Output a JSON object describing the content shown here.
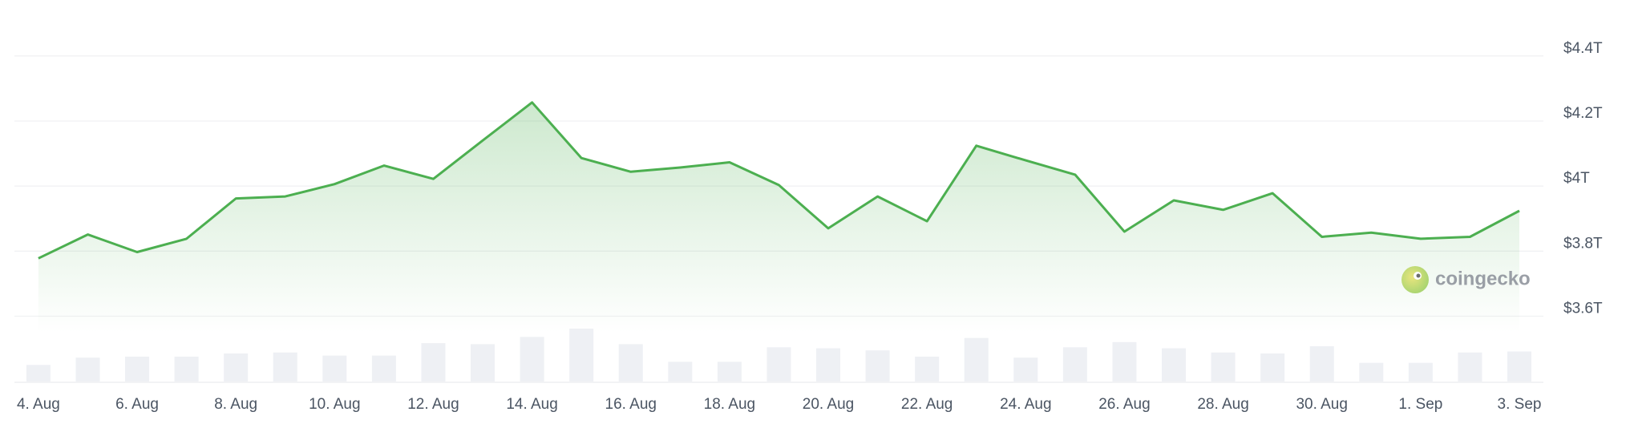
{
  "chart_data": {
    "type": "line",
    "categories": [
      "4. Aug",
      null,
      "6. Aug",
      null,
      "8. Aug",
      null,
      "10. Aug",
      null,
      "12. Aug",
      null,
      "14. Aug",
      null,
      "16. Aug",
      null,
      "18. Aug",
      null,
      "20. Aug",
      null,
      "22. Aug",
      null,
      "24. Aug",
      null,
      "26. Aug",
      null,
      "28. Aug",
      null,
      "30. Aug",
      null,
      "1. Sep",
      null,
      "3. Sep"
    ],
    "series": [
      {
        "color": "#4caf50",
        "values": [
          3.778,
          3.851,
          3.797,
          3.838,
          3.962,
          3.968,
          4.006,
          4.063,
          4.022,
          4.14,
          4.257,
          4.086,
          4.044,
          4.057,
          4.073,
          4.003,
          3.87,
          3.968,
          3.892,
          4.124,
          4.079,
          4.035,
          3.86,
          3.956,
          3.927,
          3.978,
          3.844,
          3.857,
          3.838,
          3.844,
          3.924
        ]
      }
    ],
    "volumes": {
      "color": "#eef0f4",
      "values": [
        16,
        23,
        24,
        24,
        27,
        28,
        25,
        25,
        37,
        36,
        43,
        51,
        36,
        19,
        19,
        33,
        32,
        30,
        24,
        42,
        23,
        33,
        38,
        32,
        28,
        27,
        34,
        18,
        18,
        28,
        29
      ]
    },
    "ylim": [
      3.55,
      4.5
    ],
    "yticks": [
      {
        "value": 3.6,
        "label": "$3.6T"
      },
      {
        "value": 3.8,
        "label": "$3.8T"
      },
      {
        "value": 4.0,
        "label": "$4T"
      },
      {
        "value": 4.2,
        "label": "$4.2T"
      },
      {
        "value": 4.4,
        "label": "$4.4T"
      }
    ],
    "grid": true,
    "watermark": "coingecko"
  }
}
